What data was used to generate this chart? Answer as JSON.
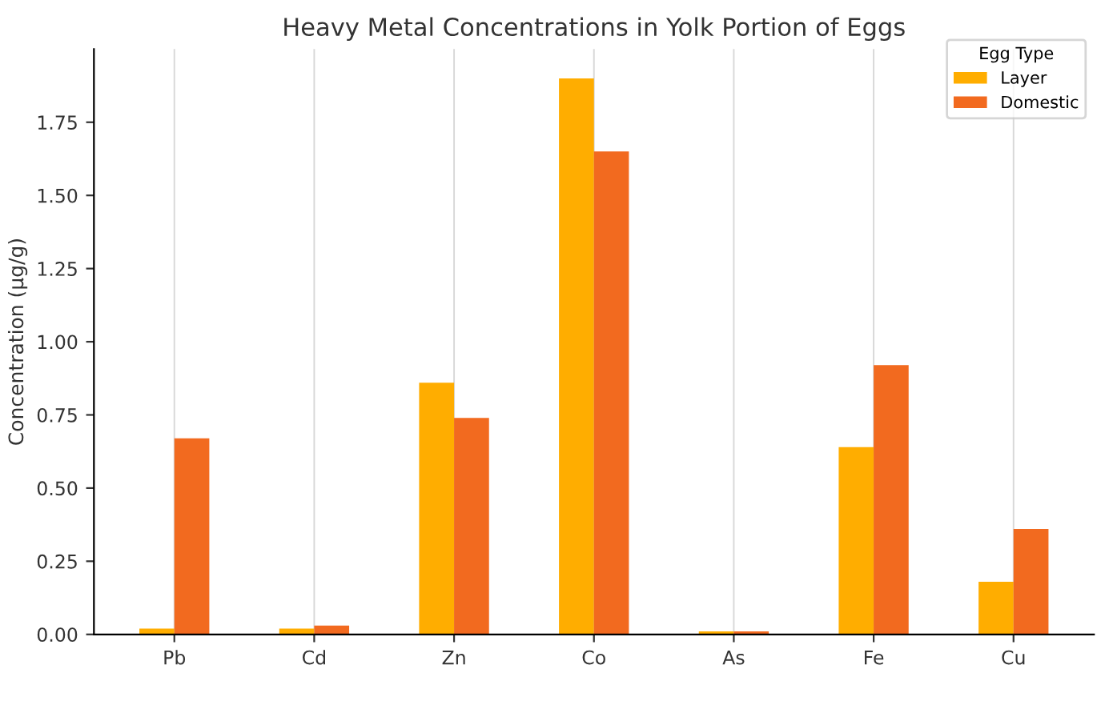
{
  "chart_data": {
    "type": "bar",
    "title": "Heavy Metal Concentrations in Yolk Portion of Eggs",
    "ylabel": "Concentration (µg/g)",
    "legend_title": "Egg Type",
    "categories": [
      "Pb",
      "Cd",
      "Zn",
      "Co",
      "As",
      "Fe",
      "Cu"
    ],
    "series": [
      {
        "name": "Layer",
        "color": "#ffad00",
        "values": [
          0.02,
          0.02,
          0.86,
          1.9,
          0.01,
          0.64,
          0.18
        ]
      },
      {
        "name": "Domestic",
        "color": "#f26a1f",
        "values": [
          0.67,
          0.03,
          0.74,
          1.65,
          0.01,
          0.92,
          0.36
        ]
      }
    ],
    "ylim": [
      0,
      2.0
    ],
    "yticks": [
      {
        "value": 0,
        "label": "0.00"
      },
      {
        "value": 0.25,
        "label": "0.25"
      },
      {
        "value": 0.5,
        "label": "0.50"
      },
      {
        "value": 0.75,
        "label": "0.75"
      },
      {
        "value": 1.0,
        "label": "1.00"
      },
      {
        "value": 1.25,
        "label": "1.25"
      },
      {
        "value": 1.5,
        "label": "1.50"
      },
      {
        "value": 1.75,
        "label": "1.75"
      }
    ],
    "grid": "x",
    "legend": "top right"
  }
}
